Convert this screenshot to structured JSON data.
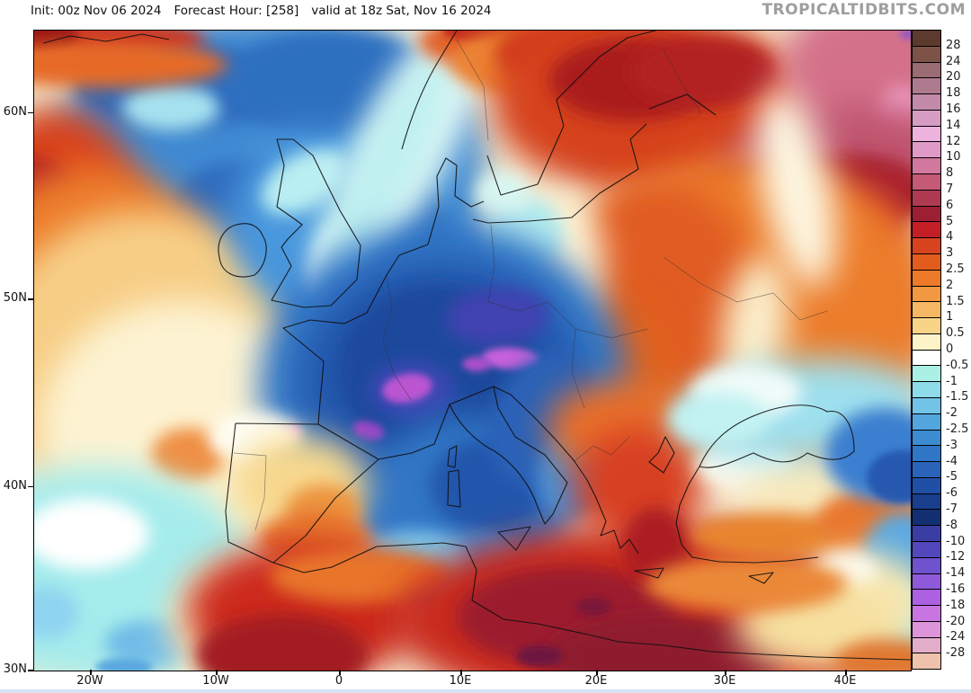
{
  "header": {
    "init": "Init: 00z Nov 06 2024",
    "forecast_hour": "Forecast Hour: [258]",
    "valid": "valid at 18z Sat, Nov 16 2024",
    "watermark": "TROPICALTIDBITS.COM"
  },
  "axes": {
    "lat_labels": [
      "60N",
      "50N",
      "40N",
      "30N"
    ],
    "lon_labels": [
      "20W",
      "10W",
      "0",
      "10E",
      "20E",
      "30E",
      "40E"
    ]
  },
  "colorbar": {
    "tick_labels": [
      "28",
      "24",
      "20",
      "18",
      "16",
      "14",
      "12",
      "10",
      "8",
      "7",
      "6",
      "5",
      "4",
      "3",
      "2.5",
      "2",
      "1.5",
      "1",
      "0.5",
      "0",
      "-0.5",
      "-1",
      "-1.5",
      "-2",
      "-2.5",
      "-3",
      "-4",
      "-5",
      "-6",
      "-7",
      "-8",
      "-10",
      "-12",
      "-14",
      "-16",
      "-18",
      "-20",
      "-24",
      "-28"
    ],
    "swatch_colors": [
      "#5c3a2e",
      "#7d5348",
      "#996b72",
      "#ae7a8e",
      "#c28aa8",
      "#d69cc4",
      "#edb2de",
      "#e09ac8",
      "#d2789e",
      "#c45a76",
      "#ae3a52",
      "#9c1f33",
      "#c41e26",
      "#d8431f",
      "#e25c1e",
      "#ec7a28",
      "#f29841",
      "#f6b765",
      "#f9d488",
      "#fdf3c8",
      "#ffffff",
      "#abf0e4",
      "#8edbe9",
      "#72c3e8",
      "#53a5de",
      "#3d8cd2",
      "#3076c6",
      "#2a64ba",
      "#2050a6",
      "#183e8c",
      "#122f72",
      "#3a3da4",
      "#5347bc",
      "#6f52ce",
      "#8f5ada",
      "#ad60e2",
      "#c875e2",
      "#dc95d8",
      "#e3adca",
      "#efc2ac"
    ]
  },
  "chart_data": {
    "type": "heatmap",
    "subtype": "filled-contour-temperature-anomaly-map",
    "region": "Europe / North Atlantic / North Africa",
    "lat_range": [
      "30N",
      "60N"
    ],
    "lon_range": [
      "20W",
      "40E"
    ],
    "colorbar_ticks": [
      28,
      24,
      20,
      18,
      16,
      14,
      12,
      10,
      8,
      7,
      6,
      5,
      4,
      3,
      2.5,
      2,
      1.5,
      1,
      0.5,
      0,
      -0.5,
      -1,
      -1.5,
      -2,
      -2.5,
      -3,
      -4,
      -5,
      -6,
      -7,
      -8,
      -10,
      -12,
      -14,
      -16,
      -18,
      -20,
      -24,
      -28
    ],
    "legend_position": "right",
    "notable_features": [
      "strong cold anomaly (-5 to -16) over France, Germany, Alps, Italy, western Mediterranean",
      "warm anomaly (+3 to +8) over eastern Europe, Scandinavia, Balkans",
      "very warm anomaly (+14 to +18, pink) far northeast corner",
      "warm anomaly (+4 to +8, dark red) North Africa and west Atlantic edge",
      "cool band (-1 to -5) Black Sea region",
      "blue negative anomalies across central North Atlantic"
    ]
  },
  "map": {
    "base_color": "#f5ead0",
    "blobs": [
      [
        260,
        140,
        240,
        160,
        "#3f8ad2",
        "l",
        0
      ],
      [
        360,
        270,
        140,
        180,
        "#3f8ad2",
        "l",
        0
      ],
      [
        160,
        62,
        115,
        48,
        "#2d6bbd",
        "m",
        0
      ],
      [
        235,
        205,
        85,
        60,
        "#2d6bbd",
        "m",
        0
      ],
      [
        152,
        86,
        55,
        26,
        "#a5e2f0",
        "m",
        0
      ],
      [
        330,
        60,
        120,
        60,
        "#2f6fc0",
        "m",
        0
      ],
      [
        60,
        10,
        130,
        24,
        "#c93220",
        "m",
        0
      ],
      [
        8,
        7,
        42,
        16,
        "#991518",
        "s",
        0
      ],
      [
        75,
        38,
        140,
        26,
        "#e66a28",
        "m",
        0
      ],
      [
        22,
        215,
        100,
        130,
        "#d8431f",
        "l",
        0
      ],
      [
        0,
        228,
        58,
        88,
        "#b01f20",
        "m",
        0
      ],
      [
        0,
        252,
        34,
        48,
        "#951a22",
        "s",
        0
      ],
      [
        65,
        305,
        145,
        155,
        "#ec7b29",
        "l",
        0
      ],
      [
        125,
        365,
        175,
        165,
        "#f7cd85",
        "l",
        0
      ],
      [
        165,
        445,
        160,
        145,
        "#fdf3d2",
        "l",
        0
      ],
      [
        172,
        472,
        42,
        30,
        "#ef8f42",
        "m",
        0
      ],
      [
        70,
        605,
        175,
        120,
        "#a5ecec",
        "l",
        0
      ],
      [
        58,
        560,
        70,
        40,
        "#ffffff",
        "m",
        0
      ],
      [
        130,
        682,
        52,
        26,
        "#6fbce8",
        "m",
        0
      ],
      [
        14,
        648,
        36,
        30,
        "#8fd4f0",
        "m",
        0
      ],
      [
        100,
        708,
        32,
        10,
        "#5aa8e0",
        "s",
        0
      ],
      [
        235,
        662,
        85,
        75,
        "#fbf0c0",
        "l",
        0
      ],
      [
        310,
        212,
        92,
        102,
        "#4a97dd",
        "l",
        0
      ],
      [
        398,
        228,
        62,
        72,
        "#2f6fc0",
        "m",
        0
      ],
      [
        338,
        258,
        30,
        52,
        "#f4fcff",
        "m",
        20
      ],
      [
        300,
        168,
        52,
        30,
        "#b9eef2",
        "m",
        -30
      ],
      [
        418,
        122,
        46,
        172,
        "#eefcf8",
        "l",
        27
      ],
      [
        392,
        152,
        40,
        150,
        "#c0f0f0",
        "l",
        27
      ],
      [
        505,
        12,
        78,
        30,
        "#e2622a",
        "m",
        0
      ],
      [
        500,
        0,
        46,
        14,
        "#c42a1c",
        "s",
        0
      ],
      [
        558,
        36,
        95,
        40,
        "#ec8434",
        "m",
        0
      ],
      [
        625,
        26,
        112,
        45,
        "#d03a1e",
        "m",
        0
      ],
      [
        685,
        82,
        175,
        100,
        "#d5431f",
        "l",
        0
      ],
      [
        665,
        55,
        92,
        46,
        "#aa1c1c",
        "m",
        0
      ],
      [
        745,
        46,
        82,
        40,
        "#b22020",
        "m",
        0
      ],
      [
        938,
        45,
        108,
        88,
        "#d4718a",
        "l",
        0
      ],
      [
        966,
        92,
        28,
        30,
        "#efa0c6",
        "m",
        0
      ],
      [
        892,
        142,
        132,
        56,
        "#c05570",
        "l",
        -8
      ],
      [
        848,
        196,
        152,
        56,
        "#a82030",
        "m",
        -8
      ],
      [
        802,
        246,
        172,
        62,
        "#c62a24",
        "l",
        -8
      ],
      [
        972,
        4,
        9,
        5,
        "#8a4fd0",
        "s",
        0
      ],
      [
        792,
        312,
        212,
        172,
        "#ec7c2c",
        "l",
        0
      ],
      [
        692,
        302,
        112,
        132,
        "#e05c24",
        "l",
        0
      ],
      [
        622,
        402,
        92,
        112,
        "#e0641f",
        "l",
        0
      ],
      [
        848,
        176,
        38,
        112,
        "#fdf6e0",
        "l",
        -12
      ],
      [
        802,
        332,
        36,
        82,
        "#faeecb",
        "l",
        8
      ],
      [
        576,
        276,
        56,
        96,
        "#fcf2d4",
        "l",
        10
      ],
      [
        546,
        226,
        42,
        42,
        "#b5ecee",
        "m",
        0
      ],
      [
        521,
        182,
        30,
        25,
        "#d8f6f2",
        "m",
        0
      ],
      [
        455,
        395,
        205,
        180,
        "#3076c6",
        "l",
        0
      ],
      [
        452,
        390,
        155,
        135,
        "#2357ac",
        "l",
        0
      ],
      [
        448,
        378,
        110,
        95,
        "#1c489c",
        "m",
        0
      ],
      [
        515,
        318,
        58,
        32,
        "#4043b0",
        "m",
        -5
      ],
      [
        420,
        400,
        48,
        32,
        "#3a46b2",
        "m",
        0
      ],
      [
        530,
        365,
        32,
        12,
        "#c860dc",
        "s",
        3
      ],
      [
        492,
        371,
        16,
        8,
        "#b050cc",
        "s",
        0
      ],
      [
        415,
        398,
        28,
        16,
        "#bc55d2",
        "s",
        -10
      ],
      [
        372,
        445,
        18,
        10,
        "#9a42c4",
        "s",
        15
      ],
      [
        285,
        447,
        12,
        8,
        "#c45ad6",
        "s",
        0
      ],
      [
        482,
        527,
        118,
        98,
        "#3076c6",
        "l",
        0
      ],
      [
        506,
        506,
        66,
        52,
        "#2357ac",
        "m",
        0
      ],
      [
        482,
        606,
        76,
        46,
        "#4a90d8",
        "m",
        0
      ],
      [
        422,
        592,
        62,
        36,
        "#7cc4e8",
        "m",
        0
      ],
      [
        566,
        432,
        56,
        76,
        "#2a62b8",
        "m",
        25
      ],
      [
        602,
        492,
        42,
        52,
        "#4a8ed4",
        "m",
        25
      ],
      [
        246,
        453,
        52,
        28,
        "#fefef4",
        "m",
        0
      ],
      [
        296,
        506,
        76,
        56,
        "#f7d88e",
        "l",
        0
      ],
      [
        322,
        533,
        42,
        28,
        "#ec9440",
        "m",
        0
      ],
      [
        312,
        566,
        62,
        30,
        "#e8772e",
        "m",
        0
      ],
      [
        302,
        646,
        132,
        76,
        "#cc2c1e",
        "l",
        0
      ],
      [
        276,
        696,
        96,
        46,
        "#a31c22",
        "m",
        0
      ],
      [
        362,
        607,
        100,
        30,
        "#e8742c",
        "m",
        0
      ],
      [
        692,
        656,
        292,
        106,
        "#c92a1f",
        "l",
        0
      ],
      [
        592,
        652,
        122,
        56,
        "#9c1d2e",
        "m",
        0
      ],
      [
        702,
        696,
        132,
        46,
        "#8f1a2e",
        "m",
        0
      ],
      [
        562,
        696,
        26,
        12,
        "#6e1440",
        "s",
        0
      ],
      [
        622,
        641,
        20,
        10,
        "#7a1838",
        "s",
        0
      ],
      [
        652,
        442,
        82,
        52,
        "#e8702a",
        "l",
        0
      ],
      [
        672,
        507,
        72,
        66,
        "#d84020",
        "l",
        0
      ],
      [
        692,
        576,
        38,
        46,
        "#ac1e20",
        "m",
        0
      ],
      [
        792,
        482,
        56,
        30,
        "#fdfaf0",
        "m",
        0
      ],
      [
        867,
        516,
        82,
        36,
        "#f8e9bc",
        "l",
        0
      ],
      [
        822,
        562,
        92,
        26,
        "#e8842e",
        "m",
        0
      ],
      [
        932,
        546,
        62,
        36,
        "#e8772e",
        "m",
        0
      ],
      [
        852,
        422,
        142,
        56,
        "#9fe0ee",
        "l",
        -5
      ],
      [
        792,
        402,
        62,
        30,
        "#f0fbf8",
        "m",
        0
      ],
      [
        946,
        472,
        66,
        52,
        "#3a7fd0",
        "m",
        0
      ],
      [
        966,
        497,
        40,
        30,
        "#2858b0",
        "s",
        0
      ],
      [
        762,
        432,
        56,
        30,
        "#c2f2f2",
        "m",
        0
      ],
      [
        966,
        592,
        46,
        56,
        "#5aa8e0",
        "m",
        0
      ],
      [
        966,
        662,
        36,
        46,
        "#9fe8e8",
        "m",
        0
      ],
      [
        922,
        632,
        72,
        52,
        "#f8e8b4",
        "l",
        0
      ],
      [
        902,
        602,
        36,
        20,
        "#fdfdf5",
        "m",
        0
      ],
      [
        872,
        662,
        92,
        50,
        "#f6e0a0",
        "l",
        0
      ],
      [
        792,
        616,
        112,
        30,
        "#eb8838",
        "m",
        0
      ],
      [
        952,
        702,
        62,
        25,
        "#e07830",
        "m",
        0
      ]
    ],
    "coastlines": [
      "M10,14 L40,6 80,12 120,4 150,10",
      "M264,300 L300,308 330,306 359,277 363,239 340,200 325,170 310,139 288,121 270,121 278,150 270,196 290,210 298,216 282,232 275,241 286,262 Z",
      "M254,228 C262,240 258,262 245,272 C225,278 208,270 206,252 C202,236 210,220 225,216 C240,212 250,218 254,228 Z",
      "M409,132 C418,100 432,62 452,30 L470,0",
      "M450,196 L448,162 458,142 470,150 468,184 486,196 500,190",
      "M504,139 L519,183 560,171 589,106 581,77 629,29 660,8 691,0",
      "M684,87 L726,71 758,94 M681,104 L663,121 672,154 629,181 598,208 550,212 505,214 488,210",
      "M316,438 C318,408 321,385 322,368 L277,331 307,322 345,326 370,314 392,272 406,250 438,238 450,196",
      "M224,437 L316,438 M224,437 L213,535 216,569 266,592 302,562 335,520 383,477 316,438",
      "M383,477 L420,470 445,460 462,416",
      "M462,416 C472,438 492,458 512,468 C534,482 552,506 560,530 L568,549 577,538 593,503 568,472 535,452 516,420 511,396 Z",
      "M516,558 L552,552 536,578 Z",
      "M462,466 L470,462 468,486 460,484 Z M461,491 L472,489 474,530 460,528 Z",
      "M511,396 L530,405 556,430 580,455 600,478 615,500 625,520 636,546 630,562 645,556 652,576 662,566 672,582",
      "M668,601 L700,598 694,609 Z",
      "M795,607 L822,603 812,615 Z",
      "M266,592 L300,603 331,597 381,574 420,572 455,570 480,574 492,600 487,634 522,655 560,660 616,672 650,680 700,684 754,691 810,694 870,697 975,700",
      "M740,485 C752,458 772,440 802,428 C832,416 862,412 882,424 C902,420 912,442 912,468 C898,482 878,478 860,470 C840,486 820,480 800,470 C780,478 758,490 740,485 Z",
      "M740,485 L728,505 718,528 714,548 720,572 732,586 762,591 802,592 838,590 872,586",
      "M712,470 L702,452 694,470 684,480 700,492 712,470"
    ],
    "borders": [
      "M222,470 L258,473 256,520 246,556",
      "M316,438 L350,458 383,477",
      "M392,272 L398,310 388,345 400,382 420,412",
      "M508,216 L512,262 505,302",
      "M505,302 L540,312 572,302",
      "M572,302 L602,332 642,342 682,332",
      "M700,252 L742,282 782,302 822,292",
      "M470,10 L500,62 505,122",
      "M700,22 L722,62 742,92",
      "M600,480 L622,462 642,472 662,452",
      "M602,332 L598,380 612,420",
      "M822,292 L852,322 882,312"
    ]
  },
  "page": {
    "bottom_strip_color": "#d9e3f2"
  }
}
